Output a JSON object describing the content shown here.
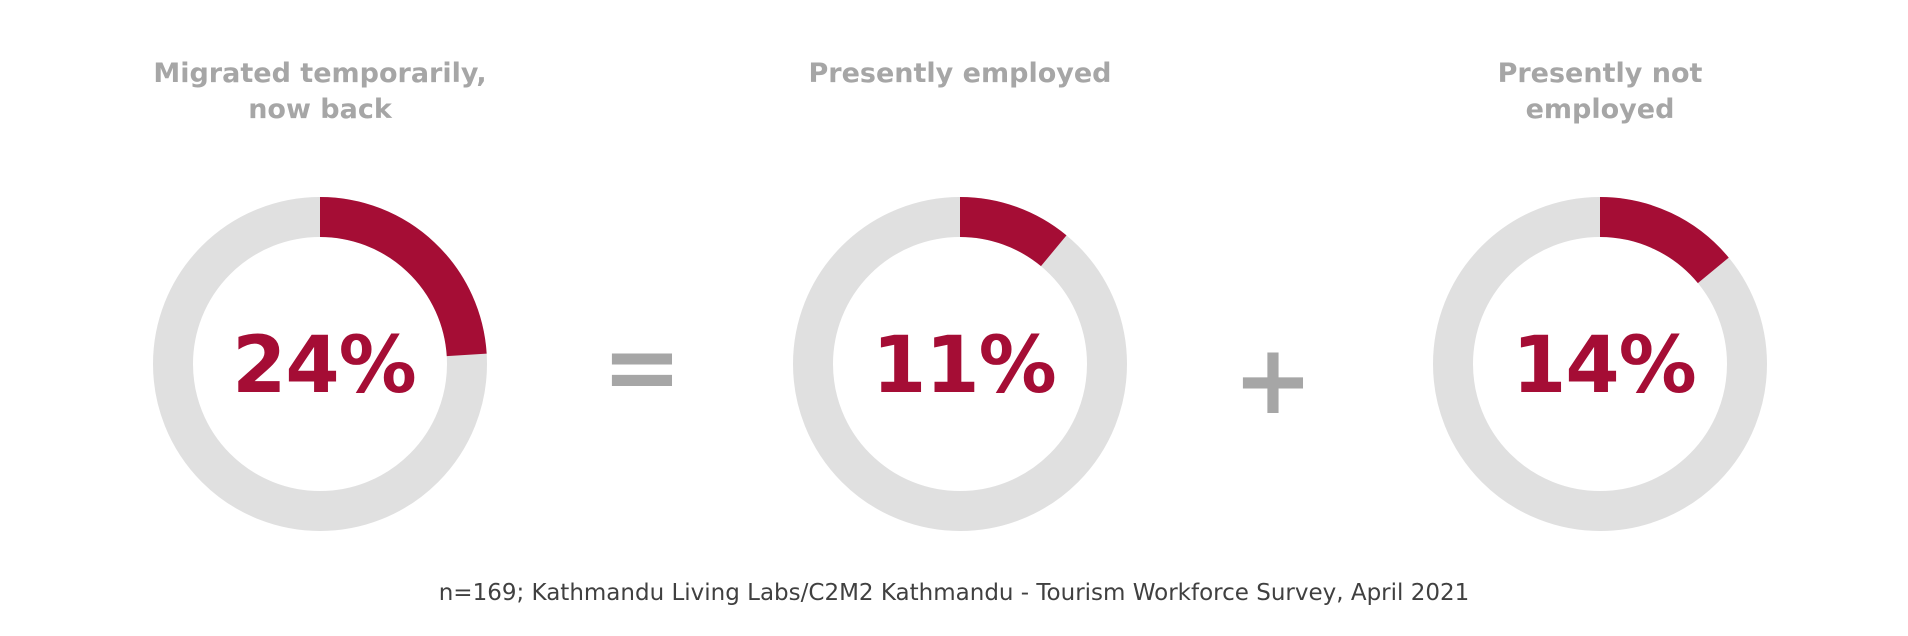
{
  "chart_data": {
    "type": "pie",
    "variant": "donut",
    "items": [
      {
        "title_lines": [
          "Migrated temporarily,",
          "now back"
        ],
        "value": 24,
        "label": "24%"
      },
      {
        "title_lines": [
          "Presently employed"
        ],
        "value": 11,
        "label": "11%"
      },
      {
        "title_lines": [
          "Presently not",
          "employed"
        ],
        "value": 14,
        "label": "14%"
      }
    ],
    "operators": [
      "=",
      "+"
    ],
    "source": "n=169; Kathmandu Living Labs/C2M2 Kathmandu - Tourism Workforce Survey, April 2021",
    "colors": {
      "highlight": "#a50d35",
      "track": "#e0e0e0",
      "title": "#a6a6a6",
      "operator": "#a6a6a6",
      "source": "#404040"
    }
  }
}
